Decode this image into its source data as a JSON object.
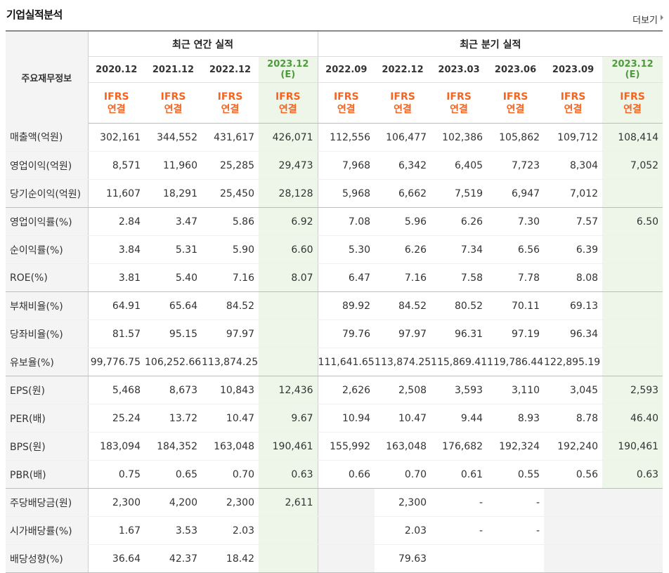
{
  "section_title": "기업실적분석",
  "more_label": "더보기",
  "row_header": "주요재무정보",
  "annual_header": "최근 연간 실적",
  "quarter_header": "최근 분기 실적",
  "ifrs_top": "IFRS",
  "ifrs_bottom": "연결",
  "estimate_mark": "(E)",
  "columns": [
    {
      "date": "2020.12",
      "est": false
    },
    {
      "date": "2021.12",
      "est": false
    },
    {
      "date": "2022.12",
      "est": false
    },
    {
      "date": "2023.12",
      "est": true
    },
    {
      "date": "2022.09",
      "est": false
    },
    {
      "date": "2022.12",
      "est": false
    },
    {
      "date": "2023.03",
      "est": false
    },
    {
      "date": "2023.06",
      "est": false
    },
    {
      "date": "2023.09",
      "est": false
    },
    {
      "date": "2023.12",
      "est": true
    }
  ],
  "rows": [
    {
      "label": "매출액(억원)",
      "values": [
        "302,161",
        "344,552",
        "431,617",
        "426,071",
        "112,556",
        "106,477",
        "102,386",
        "105,862",
        "109,712",
        "108,414"
      ]
    },
    {
      "label": "영업이익(억원)",
      "values": [
        "8,571",
        "11,960",
        "25,285",
        "29,473",
        "7,968",
        "6,342",
        "6,405",
        "7,723",
        "8,304",
        "7,052"
      ]
    },
    {
      "label": "당기순이익(억원)",
      "values": [
        "11,607",
        "18,291",
        "25,450",
        "28,128",
        "5,968",
        "6,662",
        "7,519",
        "6,947",
        "7,012",
        ""
      ]
    },
    {
      "label": "영업이익률(%)",
      "values": [
        "2.84",
        "3.47",
        "5.86",
        "6.92",
        "7.08",
        "5.96",
        "6.26",
        "7.30",
        "7.57",
        "6.50"
      ]
    },
    {
      "label": "순이익률(%)",
      "values": [
        "3.84",
        "5.31",
        "5.90",
        "6.60",
        "5.30",
        "6.26",
        "7.34",
        "6.56",
        "6.39",
        ""
      ]
    },
    {
      "label": "ROE(%)",
      "values": [
        "3.81",
        "5.40",
        "7.16",
        "8.07",
        "6.47",
        "7.16",
        "7.58",
        "7.78",
        "8.08",
        ""
      ]
    },
    {
      "label": "부채비율(%)",
      "values": [
        "64.91",
        "65.64",
        "84.52",
        "",
        "89.92",
        "84.52",
        "80.52",
        "70.11",
        "69.13",
        ""
      ]
    },
    {
      "label": "당좌비율(%)",
      "values": [
        "81.57",
        "95.15",
        "97.97",
        "",
        "79.76",
        "97.97",
        "96.31",
        "97.19",
        "96.34",
        ""
      ]
    },
    {
      "label": "유보율(%)",
      "values": [
        "99,776.75",
        "106,252.66",
        "113,874.25",
        "",
        "111,641.65",
        "113,874.25",
        "115,869.41",
        "119,786.44",
        "122,895.19",
        ""
      ]
    },
    {
      "label": "EPS(원)",
      "values": [
        "5,468",
        "8,673",
        "10,843",
        "12,436",
        "2,626",
        "2,508",
        "3,593",
        "3,110",
        "3,045",
        "2,593"
      ]
    },
    {
      "label": "PER(배)",
      "values": [
        "25.24",
        "13.72",
        "10.47",
        "9.67",
        "10.94",
        "10.47",
        "9.44",
        "8.93",
        "8.78",
        "46.40"
      ]
    },
    {
      "label": "BPS(원)",
      "values": [
        "183,094",
        "184,352",
        "163,048",
        "190,461",
        "155,992",
        "163,048",
        "176,682",
        "192,324",
        "192,240",
        "190,461"
      ]
    },
    {
      "label": "PBR(배)",
      "values": [
        "0.75",
        "0.65",
        "0.70",
        "0.63",
        "0.66",
        "0.70",
        "0.61",
        "0.55",
        "0.56",
        "0.63"
      ]
    },
    {
      "label": "주당배당금(원)",
      "values": [
        "2,300",
        "4,200",
        "2,300",
        "2,611",
        "",
        "2,300",
        "-",
        "-",
        "",
        ""
      ]
    },
    {
      "label": "시가배당률(%)",
      "values": [
        "1.67",
        "3.53",
        "2.03",
        "",
        "",
        "2.03",
        "-",
        "-",
        "",
        ""
      ]
    },
    {
      "label": "배당성향(%)",
      "values": [
        "36.64",
        "42.37",
        "18.42",
        "",
        "",
        "79.63",
        "",
        "",
        "",
        ""
      ]
    }
  ]
}
